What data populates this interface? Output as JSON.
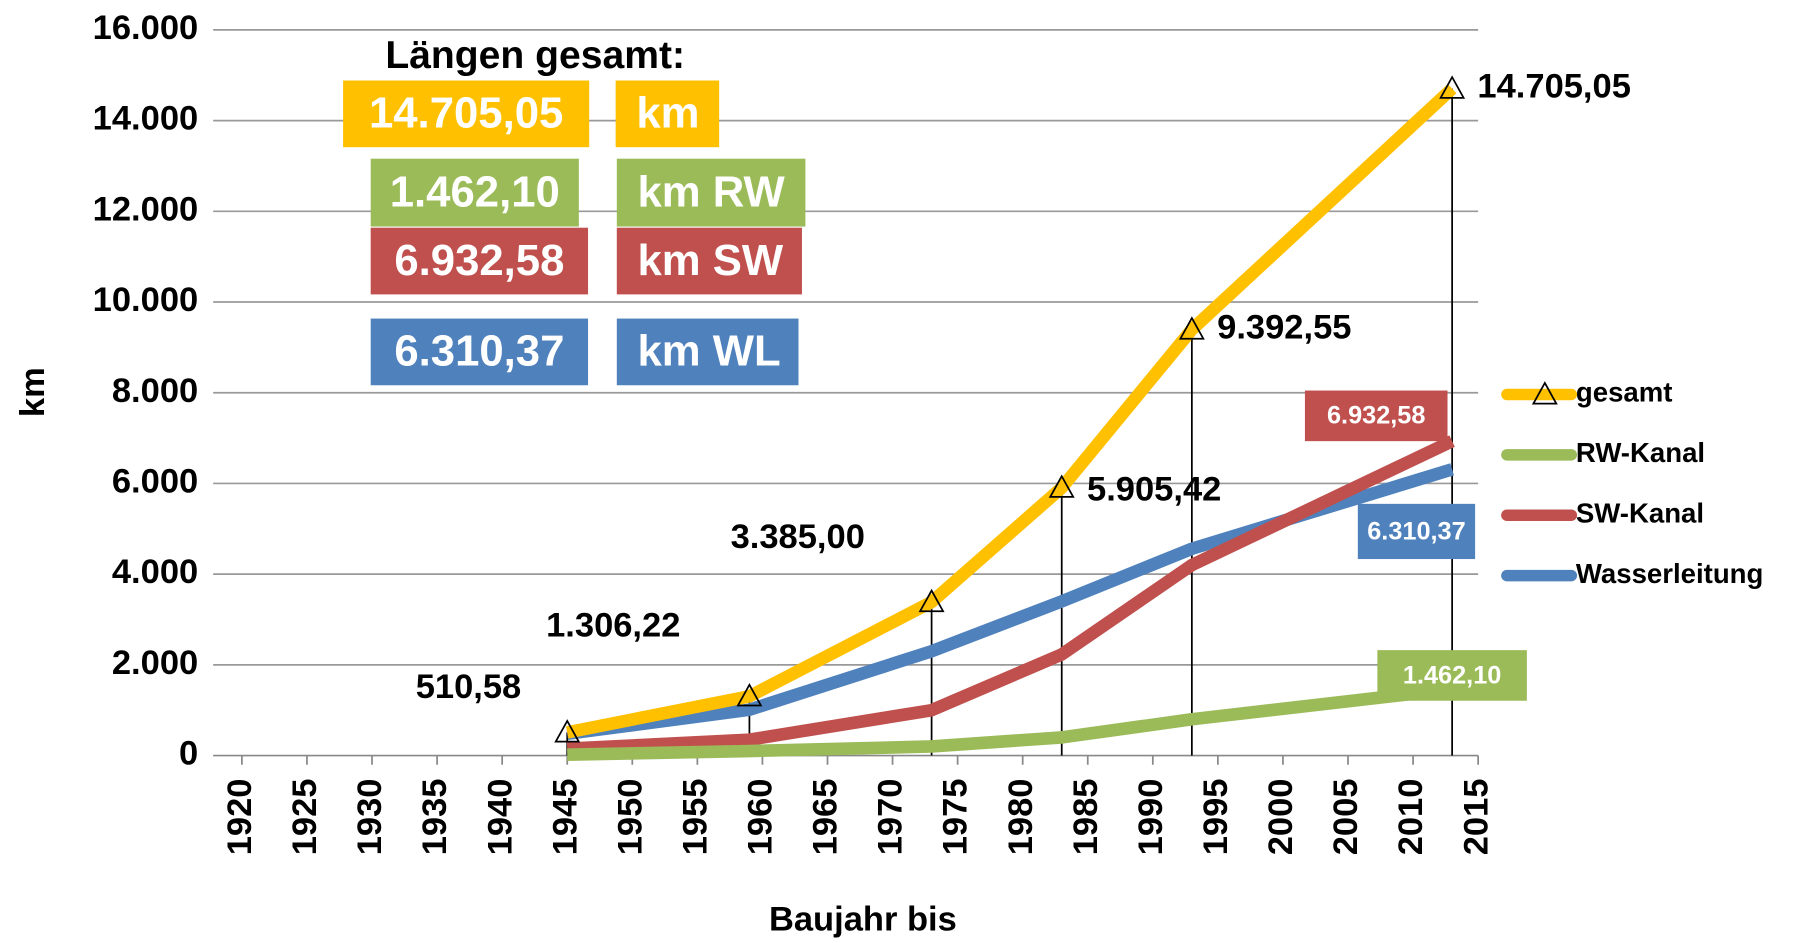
{
  "chart_data": {
    "type": "line",
    "y_label": "km",
    "x_label": "Baujahr bis",
    "x": [
      1945,
      1959,
      1973,
      1983,
      1993,
      2013
    ],
    "xlim": [
      1920,
      2015
    ],
    "xticks": [
      1920,
      1925,
      1930,
      1935,
      1940,
      1945,
      1950,
      1955,
      1960,
      1965,
      1970,
      1975,
      1980,
      1985,
      1990,
      1995,
      2000,
      2005,
      2010,
      2015
    ],
    "ylim": [
      0,
      16000
    ],
    "yticks": [
      0,
      {
        "value": 2000,
        "label": "2.000"
      },
      {
        "value": 4000,
        "label": "4.000"
      },
      {
        "value": 6000,
        "label": "6.000"
      },
      {
        "value": 8000,
        "label": "8.000"
      },
      {
        "value": 10000,
        "label": "10.000"
      },
      {
        "value": 12000,
        "label": "12.000"
      },
      {
        "value": 14000,
        "label": "14.000"
      },
      {
        "value": 16000,
        "label": "16.000"
      }
    ],
    "grid": true,
    "legend": "right",
    "series": [
      {
        "name": "gesamt",
        "color": "#ffc000",
        "marker": "triangle",
        "drop_lines": true,
        "values": [
          510.58,
          1306.22,
          3385.0,
          5905.42,
          9392.55,
          14705.05
        ],
        "value_labels": [
          "510,58",
          "1.306,22",
          "3.385,00",
          "5.905,42",
          "9.392,55",
          "14.705,05"
        ]
      },
      {
        "name": "RW-Kanal",
        "color": "#9bbb59",
        "values": [
          20,
          100,
          200,
          400,
          800,
          1462.1
        ],
        "value_labels": [
          null,
          null,
          null,
          null,
          null,
          "1.462,10"
        ]
      },
      {
        "name": "SW-Kanal",
        "color": "#c0504d",
        "values": [
          150,
          350,
          1000,
          2230,
          4200,
          6932.58
        ],
        "value_labels": [
          null,
          null,
          null,
          null,
          null,
          "6.932,58"
        ]
      },
      {
        "name": "Wasserleitung",
        "color": "#4f81bd",
        "values": [
          480,
          1010,
          2300,
          3400,
          4560,
          6310.37
        ],
        "value_labels": [
          null,
          null,
          null,
          null,
          null,
          "6.310,37"
        ]
      }
    ],
    "summary": {
      "title": "Längen gesamt:",
      "rows": [
        {
          "value": "14.705,05",
          "unit": "km",
          "color": "#ffc000"
        },
        {
          "value": "1.462,10",
          "unit": "km RW",
          "color": "#9bbb59"
        },
        {
          "value": "6.932,58",
          "unit": "km SW",
          "color": "#c0504d"
        },
        {
          "value": "6.310,37",
          "unit": "km WL",
          "color": "#4f81bd"
        }
      ]
    }
  }
}
